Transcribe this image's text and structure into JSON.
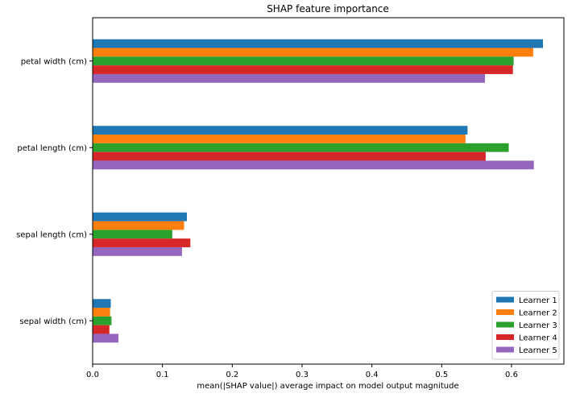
{
  "chart_data": {
    "type": "bar",
    "orientation": "horizontal",
    "title": "SHAP feature importance",
    "xlabel": "mean(|SHAP value|) average impact on model output magnitude",
    "ylabel": "",
    "xlim": [
      0,
      0.675
    ],
    "x_ticks": [
      "0.0",
      "0.1",
      "0.2",
      "0.3",
      "0.4",
      "0.5",
      "0.6"
    ],
    "categories": [
      "petal width (cm)",
      "petal length (cm)",
      "sepal length (cm)",
      "sepal width (cm)"
    ],
    "series": [
      {
        "name": "Learner 1",
        "color": "#1f77b4",
        "values": [
          0.645,
          0.537,
          0.135,
          0.026
        ]
      },
      {
        "name": "Learner 2",
        "color": "#ff7f0e",
        "values": [
          0.631,
          0.534,
          0.131,
          0.025
        ]
      },
      {
        "name": "Learner 3",
        "color": "#2ca02c",
        "values": [
          0.603,
          0.596,
          0.114,
          0.027
        ]
      },
      {
        "name": "Learner 4",
        "color": "#d62728",
        "values": [
          0.602,
          0.563,
          0.14,
          0.024
        ]
      },
      {
        "name": "Learner 5",
        "color": "#9467bd",
        "values": [
          0.562,
          0.632,
          0.128,
          0.037
        ]
      }
    ],
    "legend_position": "lower right",
    "grid": false
  }
}
